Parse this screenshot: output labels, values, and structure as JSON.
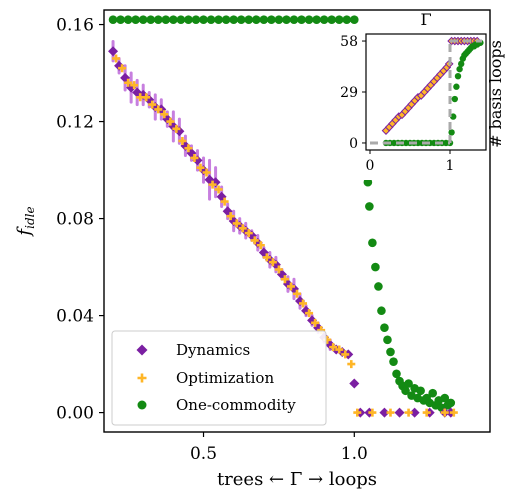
{
  "chart_data": [
    {
      "type": "scatter",
      "xlabel": "trees ← Γ → loops",
      "ylabel": "f_idle",
      "xlim": [
        0.17,
        1.45
      ],
      "ylim": [
        -0.008,
        0.166
      ],
      "xticks": [
        "0.5",
        "1.0"
      ],
      "xtick_values": [
        0.5,
        1.0
      ],
      "yticks": [
        "0.00",
        "0.04",
        "0.08",
        "0.12",
        "0.16"
      ],
      "ytick_values": [
        0.0,
        0.04,
        0.08,
        0.12,
        0.16
      ],
      "legend": {
        "placement": "lower-left",
        "entries": [
          "Dynamics",
          "Optimization",
          "One-commodity"
        ]
      },
      "colors": {
        "Dynamics": "#7b1fa2",
        "Optimization": "#ffb627",
        "One-commodity": "#138a13",
        "Dynamics_errorbar": "#c77fdf"
      },
      "series": [
        {
          "name": "Dynamics",
          "marker": "diamond",
          "x": [
            0.2,
            0.22,
            0.24,
            0.26,
            0.28,
            0.3,
            0.32,
            0.34,
            0.36,
            0.38,
            0.4,
            0.42,
            0.44,
            0.46,
            0.48,
            0.5,
            0.52,
            0.54,
            0.56,
            0.58,
            0.6,
            0.62,
            0.64,
            0.66,
            0.68,
            0.7,
            0.72,
            0.74,
            0.76,
            0.78,
            0.8,
            0.82,
            0.84,
            0.86,
            0.88,
            0.9,
            0.92,
            0.94,
            0.96,
            0.98,
            1.0,
            1.02,
            1.05,
            1.1,
            1.15,
            1.2,
            1.25,
            1.3,
            1.32
          ],
          "y": [
            0.149,
            0.143,
            0.138,
            0.134,
            0.132,
            0.131,
            0.129,
            0.126,
            0.125,
            0.121,
            0.118,
            0.116,
            0.11,
            0.107,
            0.104,
            0.1,
            0.096,
            0.095,
            0.089,
            0.083,
            0.079,
            0.077,
            0.075,
            0.073,
            0.07,
            0.066,
            0.063,
            0.061,
            0.057,
            0.053,
            0.051,
            0.046,
            0.042,
            0.038,
            0.035,
            0.031,
            0.028,
            0.026,
            0.025,
            0.024,
            0.012,
            0.0,
            0.0,
            0.0,
            0.0,
            0.0,
            0.0,
            0.0,
            0.0
          ],
          "error": [
            0.004,
            0.003,
            0.005,
            0.006,
            0.005,
            0.004,
            0.003,
            0.005,
            0.004,
            0.003,
            0.006,
            0.005,
            0.004,
            0.003,
            0.004,
            0.005,
            0.008,
            0.006,
            0.004,
            0.003,
            0.004,
            0.003,
            0.003,
            0.002,
            0.003,
            0.002,
            0.003,
            0.003,
            0.002,
            0.003,
            0.004,
            0.003,
            0.002,
            0.002,
            0.002,
            0.002,
            0.002,
            0.001,
            0.001,
            0.001,
            0.001,
            0.0,
            0.0,
            0.0,
            0.0,
            0.0,
            0.0,
            0.0,
            0.0
          ]
        },
        {
          "name": "Optimization",
          "marker": "plus",
          "x": [
            0.21,
            0.23,
            0.25,
            0.27,
            0.29,
            0.31,
            0.33,
            0.35,
            0.37,
            0.39,
            0.41,
            0.43,
            0.45,
            0.47,
            0.49,
            0.51,
            0.53,
            0.55,
            0.57,
            0.59,
            0.61,
            0.63,
            0.65,
            0.67,
            0.69,
            0.71,
            0.73,
            0.75,
            0.77,
            0.79,
            0.81,
            0.83,
            0.85,
            0.87,
            0.89,
            0.91,
            0.93,
            0.95,
            0.97,
            0.99,
            1.01,
            1.06,
            1.12,
            1.18,
            1.24,
            1.3,
            1.33
          ],
          "y": [
            0.146,
            0.142,
            0.136,
            0.135,
            0.13,
            0.13,
            0.127,
            0.125,
            0.123,
            0.12,
            0.117,
            0.112,
            0.109,
            0.105,
            0.101,
            0.099,
            0.094,
            0.092,
            0.087,
            0.081,
            0.078,
            0.076,
            0.074,
            0.071,
            0.069,
            0.064,
            0.062,
            0.059,
            0.055,
            0.052,
            0.049,
            0.045,
            0.041,
            0.037,
            0.034,
            0.03,
            0.027,
            0.026,
            0.024,
            0.02,
            0.0,
            0.0,
            0.0,
            0.0,
            0.0,
            0.0,
            0.0
          ]
        },
        {
          "name": "One-commodity",
          "marker": "circle",
          "x": [
            0.2,
            0.225,
            0.25,
            0.275,
            0.3,
            0.325,
            0.35,
            0.375,
            0.4,
            0.425,
            0.45,
            0.475,
            0.5,
            0.525,
            0.55,
            0.575,
            0.6,
            0.625,
            0.65,
            0.675,
            0.7,
            0.725,
            0.75,
            0.775,
            0.8,
            0.825,
            0.85,
            0.875,
            0.9,
            0.925,
            0.95,
            0.975,
            1.0,
            1.02,
            1.035,
            1.045,
            1.05,
            1.06,
            1.07,
            1.08,
            1.09,
            1.1,
            1.11,
            1.12,
            1.13,
            1.14,
            1.15,
            1.16,
            1.17,
            1.18,
            1.19,
            1.2,
            1.21,
            1.22,
            1.23,
            1.24,
            1.25,
            1.26,
            1.27,
            1.28,
            1.29,
            1.3,
            1.31,
            1.32
          ],
          "y": [
            0.162,
            0.162,
            0.162,
            0.162,
            0.162,
            0.162,
            0.162,
            0.162,
            0.162,
            0.162,
            0.162,
            0.162,
            0.162,
            0.162,
            0.162,
            0.162,
            0.162,
            0.162,
            0.162,
            0.162,
            0.162,
            0.162,
            0.162,
            0.162,
            0.162,
            0.162,
            0.162,
            0.162,
            0.162,
            0.162,
            0.162,
            0.162,
            0.162,
            0.142,
            0.12,
            0.095,
            0.085,
            0.07,
            0.06,
            0.052,
            0.042,
            0.035,
            0.03,
            0.025,
            0.021,
            0.016,
            0.013,
            0.011,
            0.009,
            0.012,
            0.007,
            0.01,
            0.006,
            0.009,
            0.005,
            0.006,
            0.004,
            0.008,
            0.003,
            0.005,
            0.002,
            0.006,
            0.003,
            0.004
          ]
        }
      ]
    },
    {
      "type": "scatter",
      "title": "Γ",
      "ylabel": "# basis loops",
      "xlim": [
        -0.05,
        1.45
      ],
      "ylim": [
        -4,
        62
      ],
      "xticks": [
        "0",
        "1"
      ],
      "xtick_values": [
        0,
        1
      ],
      "yticks": [
        "0",
        "29",
        "58"
      ],
      "ytick_values": [
        0,
        29,
        58
      ],
      "colors": {
        "Dynamics": "#7b1fa2",
        "Optimization": "#ffb627",
        "One-commodity": "#138a13",
        "reference": "#aaaaaa"
      },
      "series": [
        {
          "name": "Optimization",
          "marker": "diamond-filled",
          "x": [
            0.2,
            0.24,
            0.28,
            0.32,
            0.36,
            0.4,
            0.44,
            0.48,
            0.52,
            0.56,
            0.6,
            0.64,
            0.68,
            0.72,
            0.76,
            0.8,
            0.84,
            0.88,
            0.92,
            0.96,
            0.99,
            1.02,
            1.06,
            1.1,
            1.14,
            1.18,
            1.22,
            1.26,
            1.3,
            1.34
          ],
          "y": [
            7,
            9,
            11,
            13,
            15,
            16,
            18,
            20,
            22,
            24,
            26,
            27,
            29,
            31,
            33,
            35,
            37,
            39,
            41,
            43,
            45,
            58,
            58,
            58,
            58,
            58,
            58,
            58,
            58,
            58
          ]
        },
        {
          "name": "One-commodity",
          "marker": "circle",
          "x": [
            0.2,
            0.25,
            0.3,
            0.35,
            0.4,
            0.45,
            0.5,
            0.55,
            0.6,
            0.65,
            0.7,
            0.75,
            0.8,
            0.85,
            0.9,
            0.95,
            1.0,
            1.02,
            1.04,
            1.06,
            1.08,
            1.1,
            1.12,
            1.14,
            1.16,
            1.18,
            1.2,
            1.22,
            1.24,
            1.26,
            1.28,
            1.3,
            1.32,
            1.34,
            1.36,
            1.38
          ],
          "y": [
            0,
            0,
            0,
            0,
            0,
            0,
            0,
            0,
            0,
            0,
            0,
            0,
            0,
            0,
            0,
            0,
            0,
            6,
            15,
            25,
            32,
            38,
            42,
            45,
            48,
            50,
            51,
            52,
            53,
            54,
            55,
            55,
            56,
            56,
            57,
            57
          ]
        }
      ],
      "reference_lines": [
        {
          "x": [
            0.0,
            1.0
          ],
          "y": [
            0,
            0
          ]
        },
        {
          "x": [
            1.0,
            1.0
          ],
          "y": [
            0,
            58
          ]
        },
        {
          "x": [
            1.0,
            1.4
          ],
          "y": [
            58,
            58
          ]
        }
      ]
    }
  ]
}
